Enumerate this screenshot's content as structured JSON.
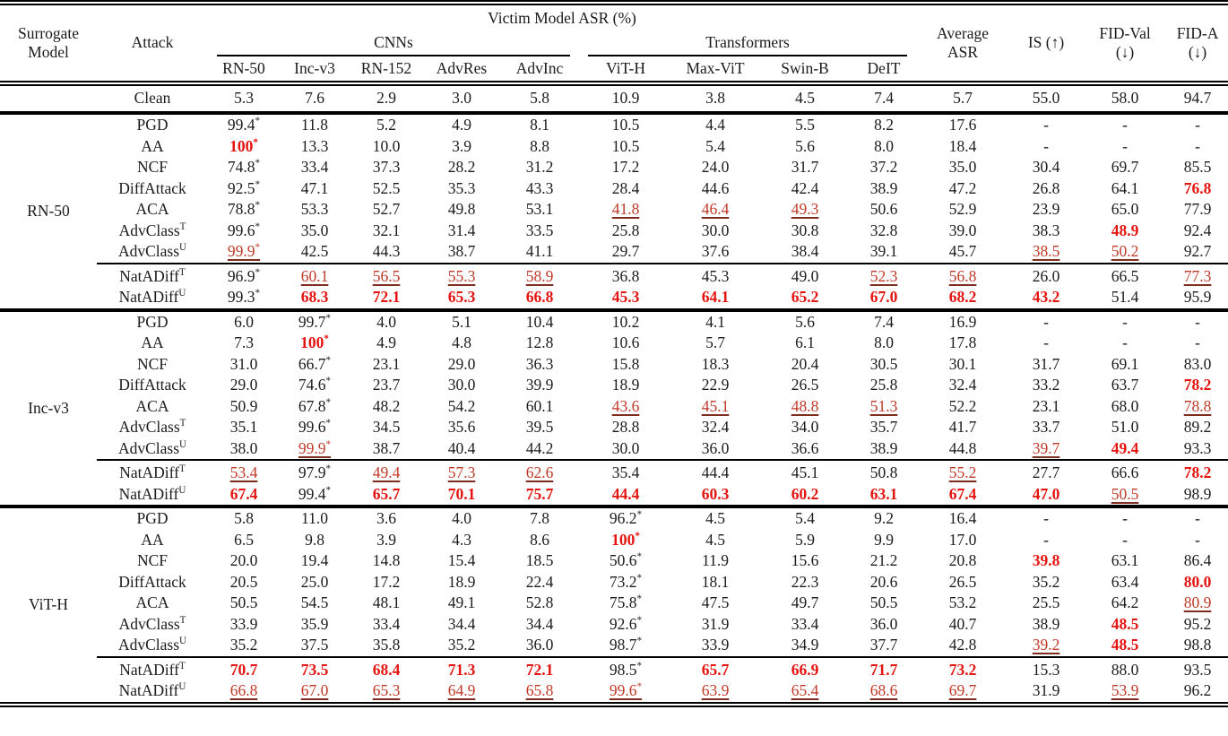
{
  "colors": {
    "best_bold_red": "#e41410",
    "second_best_red": "#c03a28",
    "second_best_underline": "#7e2d1f",
    "body_text": "#1b1b1b"
  },
  "format_key": {
    "prefix_!": "value rendered bold red",
    "prefix__": "value rendered red with dark-red underline",
    "suffix_*": "value rendered with superscript asterisk"
  },
  "table": {
    "header": {
      "surrogate_model": "Surrogate Model",
      "attack": "Attack",
      "victim_group": "Victim Model ASR (%)",
      "cnn_group": "CNNs",
      "transformer_group": "Transformers",
      "victim_cols": [
        "RN-50",
        "Inc-v3",
        "RN-152",
        "AdvRes",
        "AdvInc",
        "ViT-H",
        "Max-ViT",
        "Swin-B",
        "DeIT"
      ],
      "metric_cols": [
        "Average ASR",
        "IS (↑)",
        "FID-Val (↓)",
        "FID-A (↓)"
      ]
    },
    "clean_row": {
      "attack": "Clean",
      "sup": "",
      "values": [
        "5.3",
        "7.6",
        "2.9",
        "3.0",
        "5.8",
        "10.9",
        "3.8",
        "4.5",
        "7.4",
        "5.7",
        "55.0",
        "58.0",
        "94.7"
      ]
    },
    "blocks": [
      {
        "surrogate": "RN-50",
        "rows": [
          {
            "attack": "PGD",
            "sup": "",
            "values": [
              "99.4*",
              "11.8",
              "5.2",
              "4.9",
              "8.1",
              "10.5",
              "4.4",
              "5.5",
              "8.2",
              "17.6",
              "-",
              "-",
              "-"
            ]
          },
          {
            "attack": "AA",
            "sup": "",
            "values": [
              "!100*",
              "13.3",
              "10.0",
              "3.9",
              "8.8",
              "10.5",
              "5.4",
              "5.6",
              "8.0",
              "18.4",
              "-",
              "-",
              "-"
            ]
          },
          {
            "attack": "NCF",
            "sup": "",
            "values": [
              "74.8*",
              "33.4",
              "37.3",
              "28.2",
              "31.2",
              "17.2",
              "24.0",
              "31.7",
              "37.2",
              "35.0",
              "30.4",
              "69.7",
              "85.5"
            ]
          },
          {
            "attack": "DiffAttack",
            "sup": "",
            "values": [
              "92.5*",
              "47.1",
              "52.5",
              "35.3",
              "43.3",
              "28.4",
              "44.6",
              "42.4",
              "38.9",
              "47.2",
              "26.8",
              "64.1",
              "!76.8"
            ]
          },
          {
            "attack": "ACA",
            "sup": "",
            "values": [
              "78.8*",
              "53.3",
              "52.7",
              "49.8",
              "53.1",
              "_41.8",
              "_46.4",
              "_49.3",
              "50.6",
              "52.9",
              "23.9",
              "65.0",
              "77.9"
            ]
          },
          {
            "attack": "AdvClass",
            "sup": "T",
            "values": [
              "99.6*",
              "35.0",
              "32.1",
              "31.4",
              "33.5",
              "25.8",
              "30.0",
              "30.8",
              "32.8",
              "39.0",
              "38.3",
              "!48.9",
              "92.4"
            ]
          },
          {
            "attack": "AdvClass",
            "sup": "U",
            "values": [
              "_99.9*",
              "42.5",
              "44.3",
              "38.7",
              "41.1",
              "29.7",
              "37.6",
              "38.4",
              "39.1",
              "45.7",
              "_38.5",
              "_50.2",
              "92.7"
            ]
          },
          {
            "attack": "NatADiff",
            "sup": "T",
            "values": [
              "96.9*",
              "_60.1",
              "_56.5",
              "_55.3",
              "_58.9",
              "36.8",
              "45.3",
              "49.0",
              "_52.3",
              "_56.8",
              "26.0",
              "66.5",
              "_77.3"
            ]
          },
          {
            "attack": "NatADiff",
            "sup": "U",
            "values": [
              "99.3*",
              "!68.3",
              "!72.1",
              "!65.3",
              "!66.8",
              "!45.3",
              "!64.1",
              "!65.2",
              "!67.0",
              "!68.2",
              "!43.2",
              "51.4",
              "95.9"
            ]
          }
        ]
      },
      {
        "surrogate": "Inc-v3",
        "rows": [
          {
            "attack": "PGD",
            "sup": "",
            "values": [
              "6.0",
              "99.7*",
              "4.0",
              "5.1",
              "10.4",
              "10.2",
              "4.1",
              "5.6",
              "7.4",
              "16.9",
              "-",
              "-",
              "-"
            ]
          },
          {
            "attack": "AA",
            "sup": "",
            "values": [
              "7.3",
              "!100*",
              "4.9",
              "4.8",
              "12.8",
              "10.6",
              "5.7",
              "6.1",
              "8.0",
              "17.8",
              "-",
              "-",
              "-"
            ]
          },
          {
            "attack": "NCF",
            "sup": "",
            "values": [
              "31.0",
              "66.7*",
              "23.1",
              "29.0",
              "36.3",
              "15.8",
              "18.3",
              "20.4",
              "30.5",
              "30.1",
              "31.7",
              "69.1",
              "83.0"
            ]
          },
          {
            "attack": "DiffAttack",
            "sup": "",
            "values": [
              "29.0",
              "74.6*",
              "23.7",
              "30.0",
              "39.9",
              "18.9",
              "22.9",
              "26.5",
              "25.8",
              "32.4",
              "33.2",
              "63.7",
              "!78.2"
            ]
          },
          {
            "attack": "ACA",
            "sup": "",
            "values": [
              "50.9",
              "67.8*",
              "48.2",
              "54.2",
              "60.1",
              "_43.6",
              "_45.1",
              "_48.8",
              "_51.3",
              "52.2",
              "23.1",
              "68.0",
              "_78.8"
            ]
          },
          {
            "attack": "AdvClass",
            "sup": "T",
            "values": [
              "35.1",
              "99.6*",
              "34.5",
              "35.6",
              "39.5",
              "28.8",
              "32.4",
              "34.0",
              "35.7",
              "41.7",
              "33.7",
              "51.0",
              "89.2"
            ]
          },
          {
            "attack": "AdvClass",
            "sup": "U",
            "values": [
              "38.0",
              "_99.9*",
              "38.7",
              "40.4",
              "44.2",
              "30.0",
              "36.0",
              "36.6",
              "38.9",
              "44.8",
              "_39.7",
              "!49.4",
              "93.3"
            ]
          },
          {
            "attack": "NatADiff",
            "sup": "T",
            "values": [
              "_53.4",
              "97.9*",
              "_49.4",
              "_57.3",
              "_62.6",
              "35.4",
              "44.4",
              "45.1",
              "50.8",
              "_55.2",
              "27.7",
              "66.6",
              "!78.2"
            ]
          },
          {
            "attack": "NatADiff",
            "sup": "U",
            "values": [
              "!67.4",
              "99.4*",
              "!65.7",
              "!70.1",
              "!75.7",
              "!44.4",
              "!60.3",
              "!60.2",
              "!63.1",
              "!67.4",
              "!47.0",
              "_50.5",
              "98.9"
            ]
          }
        ]
      },
      {
        "surrogate": "ViT-H",
        "rows": [
          {
            "attack": "PGD",
            "sup": "",
            "values": [
              "5.8",
              "11.0",
              "3.6",
              "4.0",
              "7.8",
              "96.2*",
              "4.5",
              "5.4",
              "9.2",
              "16.4",
              "-",
              "-",
              "-"
            ]
          },
          {
            "attack": "AA",
            "sup": "",
            "values": [
              "6.5",
              "9.8",
              "3.9",
              "4.3",
              "8.6",
              "!100*",
              "4.5",
              "5.9",
              "9.9",
              "17.0",
              "-",
              "-",
              "-"
            ]
          },
          {
            "attack": "NCF",
            "sup": "",
            "values": [
              "20.0",
              "19.4",
              "14.8",
              "15.4",
              "18.5",
              "50.6*",
              "11.9",
              "15.6",
              "21.2",
              "20.8",
              "!39.8",
              "63.1",
              "86.4"
            ]
          },
          {
            "attack": "DiffAttack",
            "sup": "",
            "values": [
              "20.5",
              "25.0",
              "17.2",
              "18.9",
              "22.4",
              "73.2*",
              "18.1",
              "22.3",
              "20.6",
              "26.5",
              "35.2",
              "63.4",
              "!80.0"
            ]
          },
          {
            "attack": "ACA",
            "sup": "",
            "values": [
              "50.5",
              "54.5",
              "48.1",
              "49.1",
              "52.8",
              "75.8*",
              "47.5",
              "49.7",
              "50.5",
              "53.2",
              "25.5",
              "64.2",
              "_80.9"
            ]
          },
          {
            "attack": "AdvClass",
            "sup": "T",
            "values": [
              "33.9",
              "35.9",
              "33.4",
              "34.4",
              "34.4",
              "92.6*",
              "31.9",
              "33.4",
              "36.0",
              "40.7",
              "38.9",
              "!48.5",
              "95.2"
            ]
          },
          {
            "attack": "AdvClass",
            "sup": "U",
            "values": [
              "35.2",
              "37.5",
              "35.8",
              "35.2",
              "36.0",
              "98.7*",
              "33.9",
              "34.9",
              "37.7",
              "42.8",
              "_39.2",
              "!48.5",
              "98.8"
            ]
          },
          {
            "attack": "NatADiff",
            "sup": "T",
            "values": [
              "!70.7",
              "!73.5",
              "!68.4",
              "!71.3",
              "!72.1",
              "98.5*",
              "!65.7",
              "!66.9",
              "!71.7",
              "!73.2",
              "15.3",
              "88.0",
              "93.5"
            ]
          },
          {
            "attack": "NatADiff",
            "sup": "U",
            "values": [
              "_66.8",
              "_67.0",
              "_65.3",
              "_64.9",
              "_65.8",
              "_99.6*",
              "_63.9",
              "_65.4",
              "_68.6",
              "_69.7",
              "31.9",
              "_53.9",
              "96.2"
            ]
          }
        ]
      }
    ]
  }
}
